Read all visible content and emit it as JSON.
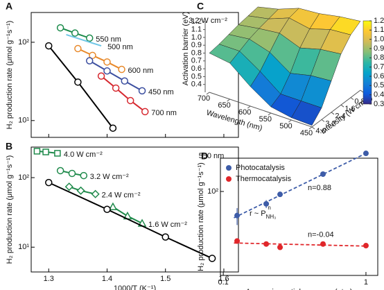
{
  "chart_data": [
    {
      "type": "line",
      "panel": "A",
      "annotation": "3.2 W cm⁻²",
      "ylabel": "H₂ production rate (μmol g⁻¹s⁻¹)",
      "log_y": true,
      "xlim": [
        1.27,
        1.625
      ],
      "ylim": [
        6.1,
        240
      ],
      "yticks": [
        {
          "value": 10,
          "label": "10¹"
        },
        {
          "value": 100,
          "label": "10²"
        }
      ],
      "series": [
        {
          "name": "550 nm",
          "color": "#1a8a4a",
          "marker": "circle",
          "x": [
            1.32,
            1.345,
            1.37
          ],
          "values": [
            153,
            131,
            113
          ]
        },
        {
          "name": "500 nm",
          "color": "#6ec6e6",
          "x": [
            1.33,
            1.36,
            1.39
          ],
          "values": [
            125,
            106,
            90
          ]
        },
        {
          "name": "600 nm",
          "color": "#e8892a",
          "marker": "circle",
          "x": [
            1.35,
            1.375,
            1.4,
            1.425
          ],
          "values": [
            83,
            68,
            56,
            45
          ]
        },
        {
          "name": "450 nm",
          "color": "#3c4fa0",
          "marker": "circle",
          "x": [
            1.37,
            1.4,
            1.43,
            1.46
          ],
          "values": [
            58,
            43,
            32,
            24
          ]
        },
        {
          "name": "700 nm",
          "color": "#d6282f",
          "marker": "circle",
          "x": [
            1.39,
            1.415,
            1.44,
            1.465
          ],
          "values": [
            37,
            26,
            18,
            13
          ]
        },
        {
          "color": "#000000",
          "marker": "circle",
          "x": [
            1.3,
            1.35,
            1.41
          ],
          "values": [
            90,
            31,
            8
          ]
        }
      ]
    },
    {
      "type": "line",
      "panel": "B",
      "annotation": "550 nm",
      "ylabel": "H₂ production rate (μmol g⁻¹s⁻¹)",
      "xlabel": "1000/T (K⁻¹)",
      "log_y": true,
      "xlim": [
        1.27,
        1.625
      ],
      "xticks": [
        1.3,
        1.4,
        1.5,
        1.6
      ],
      "ylim": [
        4.4,
        275
      ],
      "yticks": [
        {
          "value": 10,
          "label": "10¹"
        },
        {
          "value": 100,
          "label": "10²"
        }
      ],
      "series": [
        {
          "name": "4.0 W cm⁻²",
          "color": "#1f8a4b",
          "marker": "square",
          "x": [
            1.28,
            1.295,
            1.315
          ],
          "values": [
            240,
            234,
            224
          ]
        },
        {
          "name": "3.2 W cm⁻²",
          "color": "#1f8a4b",
          "marker": "circle",
          "x": [
            1.32,
            1.34,
            1.36
          ],
          "values": [
            126,
            115,
            107
          ]
        },
        {
          "name": "2.4 W cm⁻²",
          "color": "#1f8a4b",
          "marker": "diamond",
          "x": [
            1.335,
            1.355,
            1.38
          ],
          "values": [
            74,
            65,
            58
          ]
        },
        {
          "name": "1.6 W cm⁻²",
          "color": "#1f8a4b",
          "marker": "triangle",
          "x": [
            1.41,
            1.435,
            1.46
          ],
          "values": [
            38,
            28,
            22
          ]
        },
        {
          "color": "#000000",
          "marker": "circle",
          "x": [
            1.3,
            1.4,
            1.5,
            1.58
          ],
          "values": [
            85,
            35,
            14,
            6.9
          ]
        }
      ]
    },
    {
      "type": "surface3d",
      "panel": "C",
      "zlabel": "Activation barrier (eV)",
      "xlabel": "Wavelength (nm)",
      "ylabel": "Intensity (W cm⁻²)",
      "x": [
        450,
        500,
        550,
        600,
        650,
        700
      ],
      "y": [
        0,
        0.8,
        1.6,
        2.4,
        3.2,
        4
      ],
      "xlim": [
        450,
        700
      ],
      "ylim": [
        0,
        4
      ],
      "zlim": [
        0.3,
        1.2
      ],
      "xticks": [
        450,
        500,
        550,
        600,
        650,
        700
      ],
      "yticks": [
        0,
        0.8,
        1.6,
        2.4,
        3.2,
        {
          "value": 4,
          "label": "4.0"
        }
      ],
      "zticks": [
        0.3,
        0.4,
        0.5,
        0.6,
        0.7,
        0.8,
        0.9,
        {
          "value": 1,
          "label": "1.0"
        },
        1.1,
        1.2
      ],
      "z": [
        [
          1.18,
          1.1,
          0.95,
          0.7,
          0.45,
          0.32
        ],
        [
          1.15,
          1.08,
          0.92,
          0.68,
          0.45,
          0.33
        ],
        [
          1.1,
          1.0,
          0.85,
          0.62,
          0.45,
          0.38
        ],
        [
          1.08,
          1.05,
          0.95,
          0.8,
          0.65,
          0.55
        ],
        [
          0.98,
          0.95,
          0.92,
          0.88,
          0.82,
          0.76
        ],
        [
          0.92,
          0.9,
          0.88,
          0.85,
          0.82,
          0.8
        ]
      ],
      "colormap": [
        "#352a87",
        "#0f5cdd",
        "#1481d6",
        "#06a4ca",
        "#2eb7a4",
        "#87bf77",
        "#d1bb59",
        "#fec832",
        "#f9fb0e"
      ]
    },
    {
      "type": "scatter",
      "panel": "D",
      "ylabel": "H₂ production rate (μmol g⁻¹s⁻¹)",
      "xlabel": "Ammonia partial pressure (atm)",
      "log_x": true,
      "log_y": true,
      "xlim": [
        0.0955,
        1.21
      ],
      "ylim": [
        8.9,
        261
      ],
      "xticks": [
        0.1,
        1
      ],
      "yticks": [
        {
          "value": 100,
          "label": "10²"
        }
      ],
      "series": [
        {
          "name": "Photocatalysis",
          "color": "#3d5ca8",
          "x": [
            0.125,
            0.2,
            0.25,
            0.5,
            1
          ],
          "values": [
            50,
            70,
            92,
            165,
            300
          ],
          "errors": [
            12,
            8,
            0,
            0,
            0
          ],
          "annotation": "n=0.88"
        },
        {
          "name": "Thermocatalysis",
          "color": "#e0262a",
          "x": [
            0.125,
            0.2,
            0.25,
            0.5,
            1
          ],
          "values": [
            24,
            22,
            20,
            22,
            21
          ],
          "annotation": "n=-0.04"
        }
      ],
      "formula": {
        "text": "r ~ P",
        "sub": "NH₃",
        "sup": "n"
      }
    }
  ]
}
